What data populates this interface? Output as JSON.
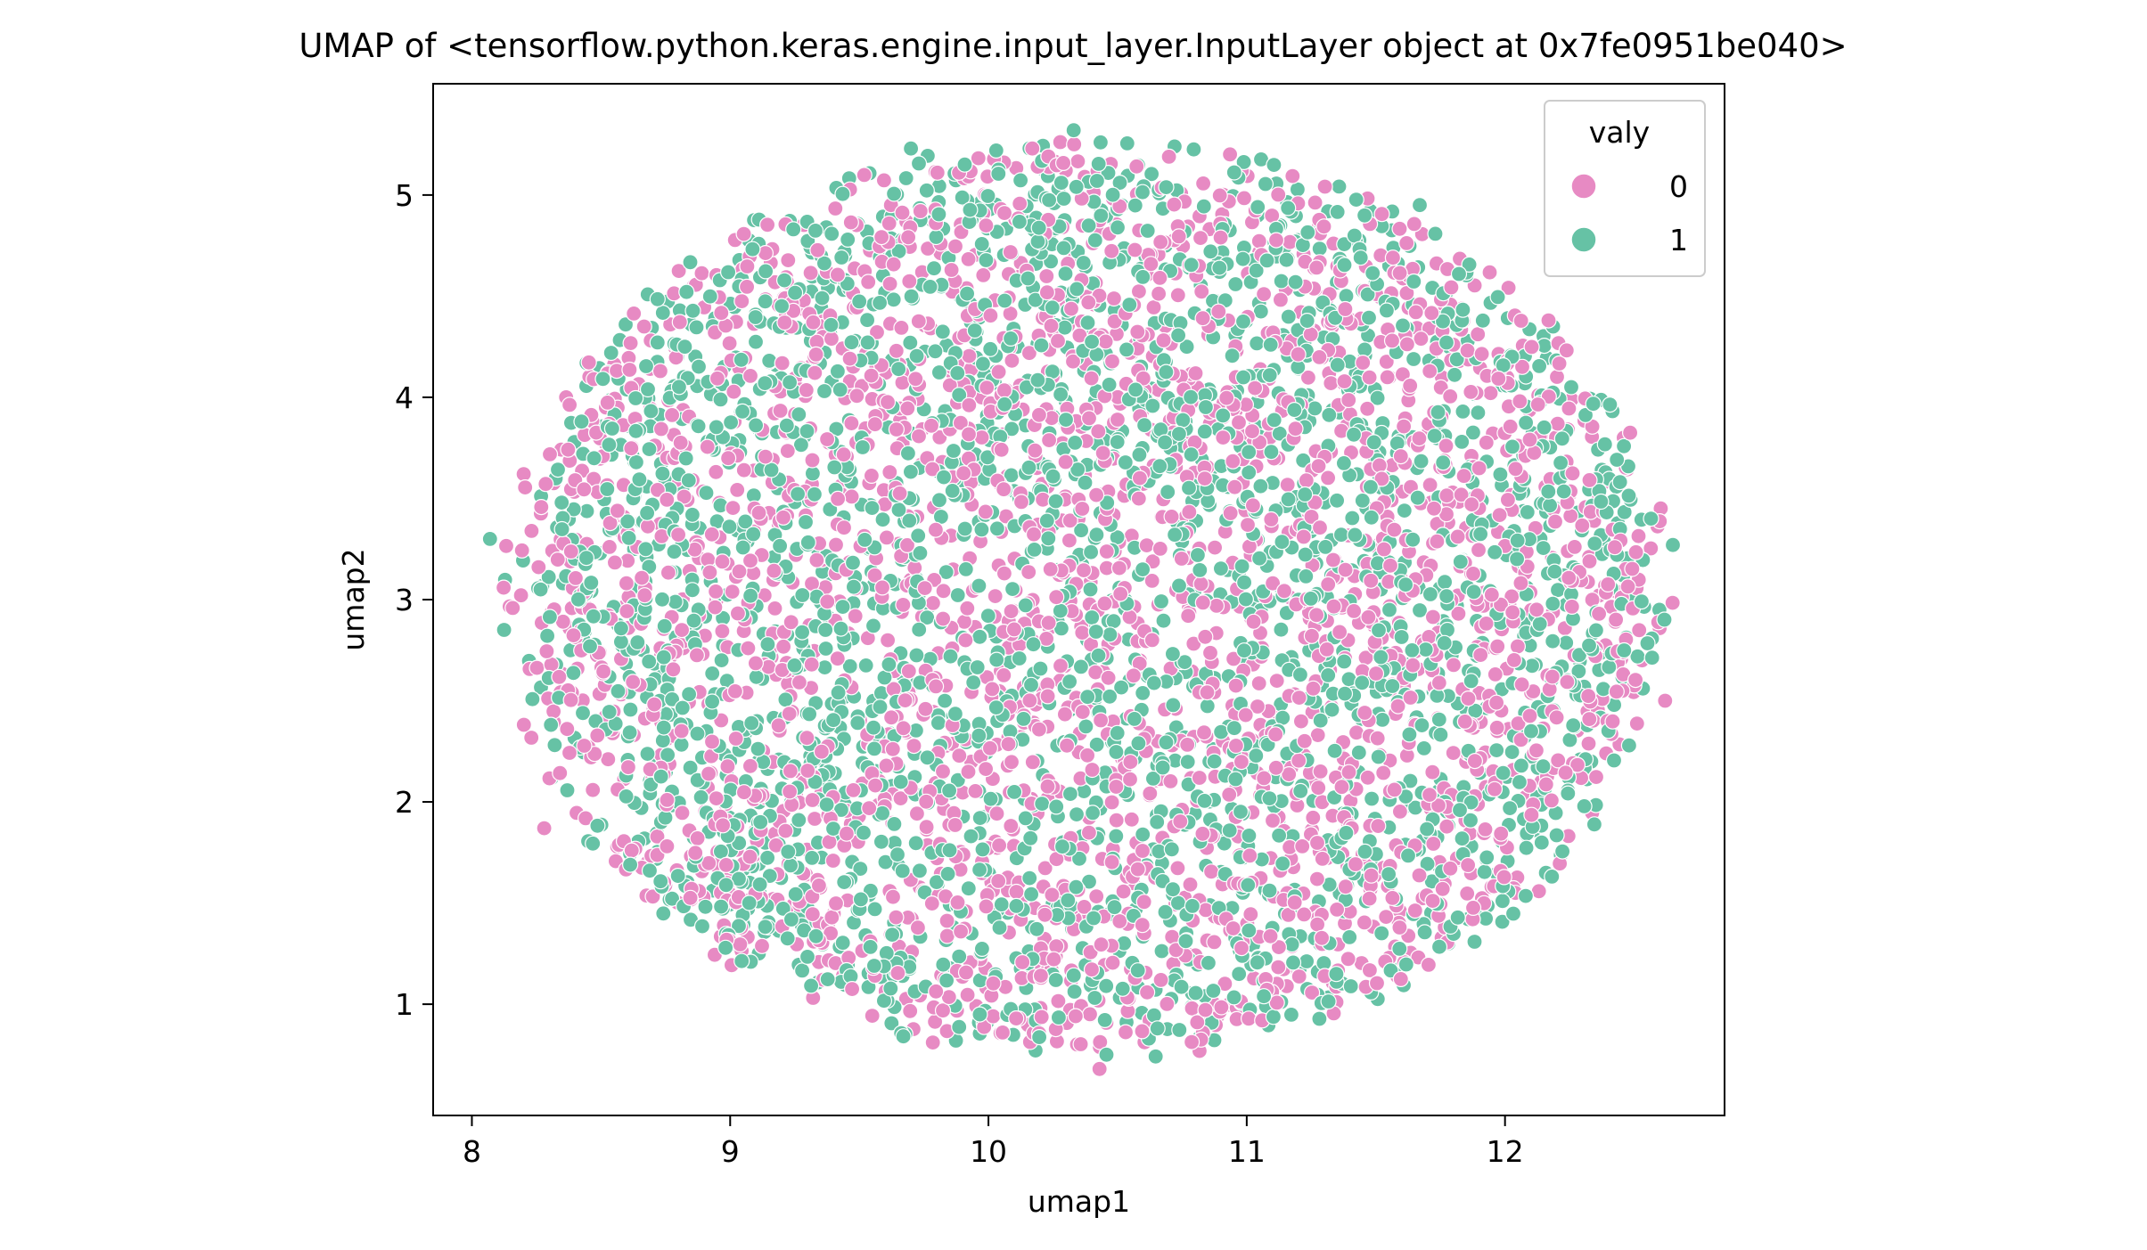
{
  "chart_data": {
    "type": "scatter",
    "title": "UMAP of <tensorflow.python.keras.engine.input_layer.InputLayer object at 0x7fe0951be040>",
    "xlabel": "umap1",
    "ylabel": "umap2",
    "xlim": [
      7.85,
      12.85
    ],
    "ylim": [
      0.45,
      5.55
    ],
    "xticks": [
      8,
      9,
      10,
      11,
      12
    ],
    "yticks": [
      1,
      2,
      3,
      4,
      5
    ],
    "grid": false,
    "legend": {
      "title": "valy",
      "position": "top-right",
      "entries": [
        {
          "label": "0",
          "color": "#e78ac3"
        },
        {
          "label": "1",
          "color": "#66c2a5"
        }
      ]
    },
    "series": [
      {
        "name": "0",
        "color": "#e78ac3",
        "cloud": {
          "center": [
            10.4,
            3.0
          ],
          "x_extent": [
            8.1,
            12.65
          ],
          "y_extent": [
            0.68,
            5.25
          ],
          "approx_count": 2700
        }
      },
      {
        "name": "1",
        "color": "#66c2a5",
        "cloud": {
          "center": [
            10.4,
            3.0
          ],
          "x_extent": [
            8.05,
            12.65
          ],
          "y_extent": [
            0.72,
            5.32
          ],
          "approx_count": 2700
        }
      }
    ],
    "notable_points": [
      {
        "series": "0",
        "x": 10.43,
        "y": 0.68
      },
      {
        "series": "1",
        "x": 10.33,
        "y": 5.32
      },
      {
        "series": "1",
        "x": 8.07,
        "y": 3.3
      },
      {
        "series": "0",
        "x": 12.62,
        "y": 2.5
      },
      {
        "series": "1",
        "x": 12.65,
        "y": 3.27
      },
      {
        "series": "1",
        "x": 11.67,
        "y": 4.95
      },
      {
        "series": "0",
        "x": 8.28,
        "y": 1.87
      },
      {
        "series": "1",
        "x": 9.7,
        "y": 5.23
      },
      {
        "series": "0",
        "x": 10.17,
        "y": 5.23
      },
      {
        "series": "1",
        "x": 10.03,
        "y": 5.22
      }
    ]
  }
}
